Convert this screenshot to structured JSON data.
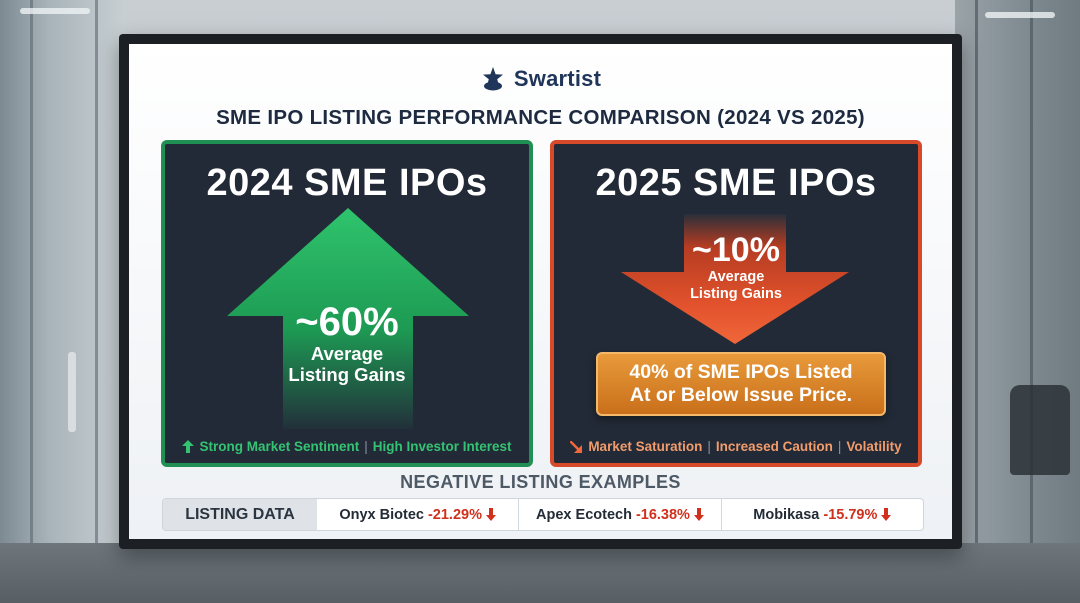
{
  "brand": {
    "name": "Swartist",
    "logo_icon": "star-cloud-icon",
    "color": "#1f3559"
  },
  "headline": "SME IPO LISTING PERFORMANCE COMPARISON (2024 VS 2025)",
  "panels": {
    "left": {
      "title": "2024 SME IPOs",
      "value": "~60%",
      "label_line1": "Average",
      "label_line2": "Listing Gains",
      "arrow": "up-arrow-icon",
      "accent": "#1f8f54",
      "tags": [
        "Strong Market Sentiment",
        "High Investor Interest"
      ]
    },
    "right": {
      "title": "2025 SME IPOs",
      "value": "~10%",
      "label_line1": "Average",
      "label_line2": "Listing Gains",
      "arrow": "down-arrow-icon",
      "accent": "#d64a2a",
      "callout_line1": "40% of SME IPOs Listed",
      "callout_line2": "At or Below Issue Price.",
      "tags": [
        "Market Saturation",
        "Increased Caution",
        "Volatility"
      ]
    }
  },
  "negative_examples": {
    "title": "NEGATIVE LISTING EXAMPLES",
    "label": "LISTING DATA",
    "items": [
      {
        "name": "Onyx Biotec",
        "change": "-21.29%"
      },
      {
        "name": "Apex Ecotech",
        "change": "-16.38%"
      },
      {
        "name": "Mobikasa",
        "change": "-15.79%"
      }
    ]
  }
}
